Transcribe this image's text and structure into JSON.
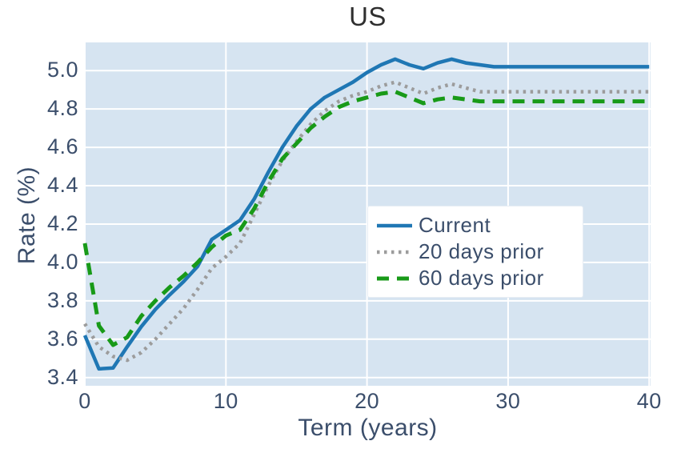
{
  "chart_data": {
    "type": "line",
    "title": "US",
    "xlabel": "Term (years)",
    "ylabel": "Rate (%)",
    "x": [
      0,
      1,
      2,
      3,
      4,
      5,
      6,
      7,
      8,
      9,
      10,
      11,
      12,
      13,
      14,
      15,
      16,
      17,
      18,
      19,
      20,
      21,
      22,
      23,
      24,
      25,
      26,
      27,
      28,
      29,
      30,
      40
    ],
    "series": [
      {
        "name": "Current",
        "color": "#1f77b4",
        "style": "solid",
        "values": [
          3.62,
          3.445,
          3.45,
          3.56,
          3.665,
          3.755,
          3.83,
          3.9,
          3.98,
          4.12,
          4.17,
          4.22,
          4.33,
          4.47,
          4.6,
          4.71,
          4.8,
          4.86,
          4.9,
          4.94,
          4.99,
          5.03,
          5.06,
          5.03,
          5.01,
          5.04,
          5.06,
          5.04,
          5.03,
          5.02,
          5.02,
          5.02
        ]
      },
      {
        "name": "20 days prior",
        "color": "#9c9c9c",
        "style": "dotted",
        "values": [
          3.68,
          3.56,
          3.51,
          3.49,
          3.53,
          3.6,
          3.68,
          3.76,
          3.86,
          3.97,
          4.03,
          4.1,
          4.25,
          4.4,
          4.53,
          4.63,
          4.72,
          4.79,
          4.84,
          4.87,
          4.89,
          4.92,
          4.94,
          4.91,
          4.88,
          4.91,
          4.93,
          4.91,
          4.89,
          4.89,
          4.89,
          4.89
        ]
      },
      {
        "name": "60 days prior",
        "color": "#189a18",
        "style": "dashed",
        "values": [
          4.1,
          3.67,
          3.57,
          3.61,
          3.72,
          3.8,
          3.87,
          3.93,
          4.0,
          4.08,
          4.14,
          4.17,
          4.28,
          4.42,
          4.54,
          4.62,
          4.7,
          4.76,
          4.81,
          4.84,
          4.86,
          4.88,
          4.89,
          4.86,
          4.83,
          4.85,
          4.86,
          4.85,
          4.84,
          4.84,
          4.84,
          4.84
        ]
      }
    ],
    "xticks": [
      0,
      10,
      20,
      30,
      40
    ],
    "yticks": [
      3.4,
      3.6,
      3.8,
      4.0,
      4.2,
      4.4,
      4.6,
      4.8,
      5.0
    ],
    "xlim": [
      0,
      40.1
    ],
    "ylim": [
      3.357,
      5.147
    ],
    "grid": true,
    "grid_color": "#ffffff",
    "plot_background": "#d6e4f1",
    "legend_position": "center-right",
    "legend_labels": [
      "Current",
      "20 days prior",
      "60 days prior"
    ],
    "text_color": "#3b4e6b",
    "title_color": "#2f2f2f"
  }
}
